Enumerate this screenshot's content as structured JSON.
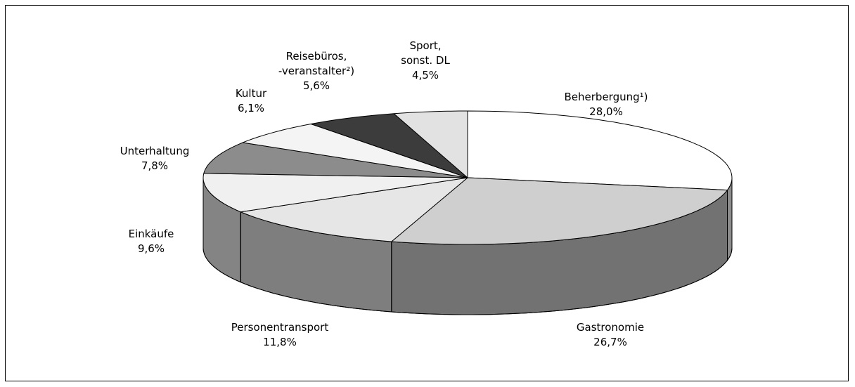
{
  "chart_data": {
    "type": "pie3d",
    "categories": [
      "Beherbergung¹)",
      "Gastronomie",
      "Personentransport",
      "Einkäufe",
      "Unterhaltung",
      "Kultur",
      "Reisebüros,\n-veranstalter²)",
      "Sport,\nsonst. DL"
    ],
    "values": [
      28.0,
      26.7,
      11.8,
      9.6,
      7.8,
      6.1,
      5.6,
      4.5
    ],
    "value_labels": [
      "28,0%",
      "26,7%",
      "11,8%",
      "9,6%",
      "7,8%",
      "6,1%",
      "5,6%",
      "4,5%"
    ],
    "colors": [
      "#ffffff",
      "#cfcfcf",
      "#e6e6e6",
      "#f0f0f0",
      "#8c8c8c",
      "#f4f4f4",
      "#3c3c3c",
      "#e2e2e2"
    ]
  }
}
